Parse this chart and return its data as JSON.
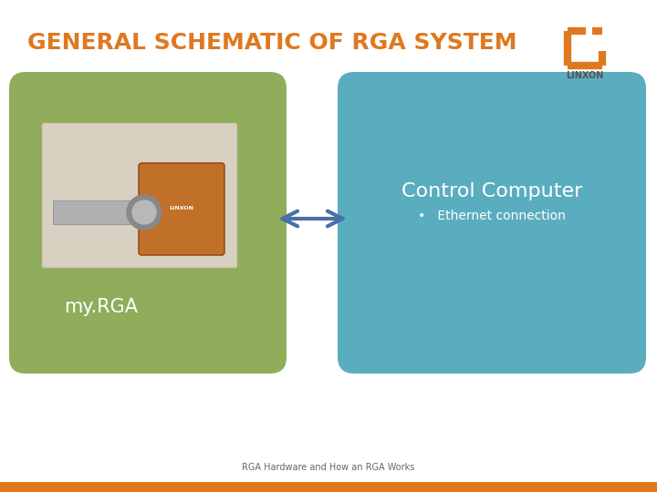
{
  "title": "GENERAL SCHEMATIC OF RGA SYSTEM",
  "title_color": "#E07820",
  "title_fontsize": 18,
  "bg_color": "#FFFFFF",
  "left_box_color": "#8FAD5A",
  "right_box_color": "#5AADBE",
  "left_label": "my.RGA",
  "right_label": "Control Computer",
  "right_sublabel": "•   Ethernet connection",
  "box_text_color": "#FFFFFF",
  "arrow_color": "#4A6FA8",
  "footer_text": "RGA Hardware and How an RGA Works",
  "footer_bar_color": "#E07820",
  "linxon_color": "#E07820",
  "linxon_text": "LINXON"
}
